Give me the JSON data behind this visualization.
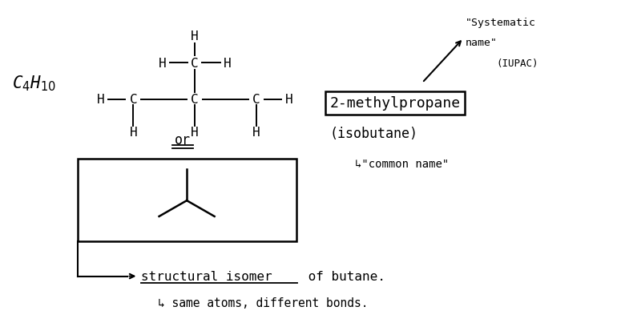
{
  "bg_color": "#ffffff",
  "figsize": [
    7.7,
    4.14
  ],
  "dpi": 100,
  "xlim": [
    0,
    10
  ],
  "ylim": [
    0,
    5.4
  ],
  "formula": "C$_4$H$_{10}$",
  "systematic_name": "2-methylpropane",
  "iupac_label": "(IUPAC)",
  "common_name": "(isobutane)",
  "common_name_label": "↳\"common name\"",
  "systematic_label_line1": "\"Systematic",
  "systematic_label_line2": "name\"",
  "or_label": "or",
  "bottom_line1a": "structural isomer",
  "bottom_line1b": " of butane.",
  "bottom_line2": "↳ same atoms, different bonds."
}
